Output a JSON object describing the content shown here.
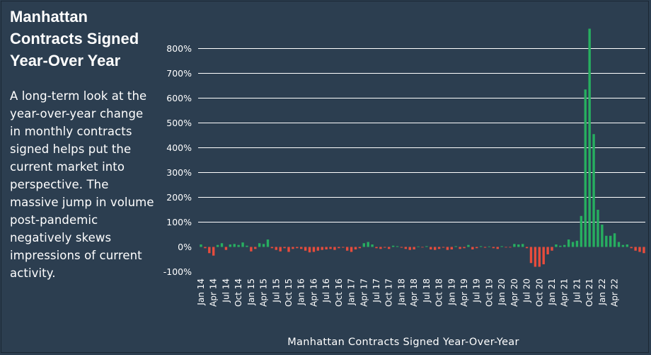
{
  "title": "Manhattan Contracts Signed Year-Over Year",
  "description": "A long-term look at the year-over-year change in monthly contracts signed helps put the current market into perspective. The massive jump in volume post-pandemic negatively skews impressions of current activity.",
  "chart_data": {
    "type": "bar",
    "title": "",
    "xlabel": "Manhattan Contracts Signed Year-Over-Year",
    "ylabel": "",
    "ylim": [
      -100,
      900
    ],
    "yticks": [
      "-100%",
      "0%",
      "100%",
      "200%",
      "300%",
      "400%",
      "500%",
      "600%",
      "700%",
      "800%"
    ],
    "xtick_labels": [
      "Jan 14",
      "Apr 14",
      "Jul 14",
      "Oct 14",
      "Jan 15",
      "Apr 15",
      "Jul 15",
      "Oct 15",
      "Jan 16",
      "Apr 16",
      "Jul 16",
      "Oct 16",
      "Jan 17",
      "Apr 17",
      "Jul 17",
      "Oct 17",
      "Jan 18",
      "Apr 18",
      "Jul 18",
      "Oct 18",
      "Jan 19",
      "Apr 19",
      "Jul 19",
      "Oct 19",
      "Jan 20",
      "Apr 20",
      "Jul 20",
      "Oct 20",
      "Jan 21",
      "Apr 21",
      "Jul 21",
      "Oct 21",
      "Jan 22",
      "Apr 22"
    ],
    "start_month": "Jan 14",
    "positive_color": "#27ae60",
    "negative_color": "#e74c3c",
    "grid": true,
    "values": [
      10,
      -5,
      -25,
      -35,
      8,
      15,
      -12,
      10,
      12,
      8,
      18,
      5,
      -18,
      -8,
      15,
      12,
      30,
      -5,
      -12,
      -18,
      -5,
      -20,
      -8,
      -5,
      -8,
      -15,
      -22,
      -20,
      -15,
      -12,
      -10,
      -8,
      -12,
      -5,
      -3,
      -15,
      -20,
      -10,
      -5,
      15,
      20,
      10,
      -5,
      -8,
      -3,
      -8,
      5,
      3,
      -3,
      -8,
      -12,
      -10,
      2,
      -2,
      3,
      -10,
      -12,
      -8,
      -3,
      -12,
      -10,
      3,
      -8,
      -5,
      8,
      -10,
      -5,
      3,
      -3,
      2,
      -5,
      -8,
      3,
      -2,
      -2,
      12,
      10,
      12,
      -5,
      -65,
      -80,
      -80,
      -70,
      -30,
      -15,
      10,
      5,
      8,
      30,
      20,
      25,
      125,
      635,
      880,
      455,
      150,
      90,
      45,
      45,
      55,
      20,
      8,
      10,
      -5,
      -15,
      -20,
      -25
    ]
  }
}
